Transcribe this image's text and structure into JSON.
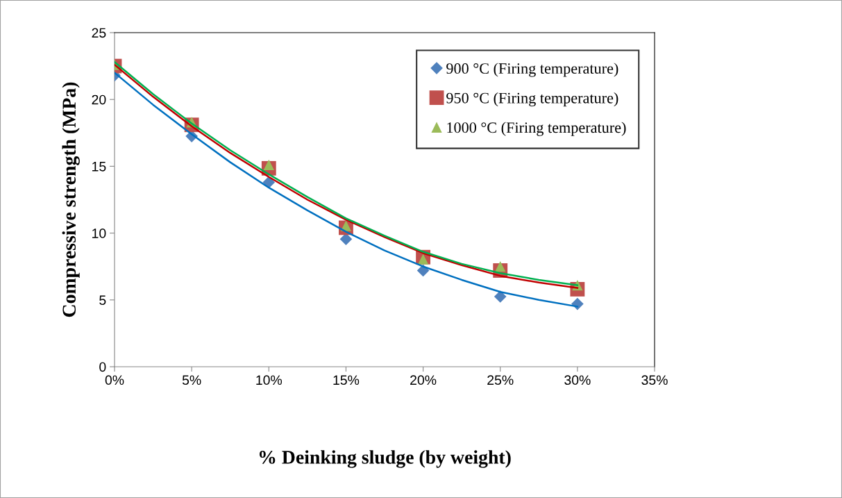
{
  "chart_data": {
    "type": "scatter",
    "xlabel": "% Deinking sludge (by weight)",
    "ylabel": "Compressive strength (MPa)",
    "x": [
      0,
      5,
      10,
      15,
      20,
      25,
      30
    ],
    "xlim": [
      0,
      35
    ],
    "xticks": [
      {
        "value": 0,
        "label": "0%"
      },
      {
        "value": 5,
        "label": "5%"
      },
      {
        "value": 10,
        "label": "10%"
      },
      {
        "value": 15,
        "label": "15%"
      },
      {
        "value": 20,
        "label": "20%"
      },
      {
        "value": 25,
        "label": "25%"
      },
      {
        "value": 30,
        "label": "30%"
      },
      {
        "value": 35,
        "label": "35%"
      }
    ],
    "ylim": [
      0,
      25
    ],
    "yticks": [
      0,
      5,
      10,
      15,
      20,
      25
    ],
    "grid": false,
    "legend": "top right",
    "series": [
      {
        "name": "900 °C (Firing temperature)",
        "color": "#4f81bd",
        "marker": "diamond",
        "values": [
          21.8,
          17.25,
          13.8,
          9.55,
          7.2,
          5.25,
          4.7
        ]
      },
      {
        "name": "950 °C (Firing temperature)",
        "color": "#c0504d",
        "marker": "square",
        "values": [
          22.5,
          18.1,
          14.85,
          10.4,
          8.2,
          7.2,
          5.8
        ]
      },
      {
        "name": "1000 °C (Firing temperature)",
        "color": "#9bbb59",
        "marker": "triangle",
        "values": [
          22.6,
          18.3,
          15.1,
          10.55,
          8.05,
          7.5,
          6.1
        ]
      },
      {
        "type": "line",
        "color": "#0070c0",
        "marker": "none",
        "x": [
          0,
          2.5,
          5,
          7.5,
          10,
          12.5,
          15,
          17.5,
          20,
          22.5,
          25,
          27.5,
          30
        ],
        "values": [
          22.0,
          19.6,
          17.4,
          15.3,
          13.4,
          11.7,
          10.1,
          8.7,
          7.5,
          6.5,
          5.6,
          5.0,
          4.5
        ]
      },
      {
        "type": "line",
        "color": "#c00000",
        "marker": "none",
        "x": [
          0,
          2.5,
          5,
          7.5,
          10,
          12.5,
          15,
          17.5,
          20,
          22.5,
          25,
          27.5,
          30
        ],
        "values": [
          22.6,
          20.2,
          18.0,
          16.0,
          14.2,
          12.5,
          11.0,
          9.7,
          8.5,
          7.6,
          6.8,
          6.3,
          5.9
        ]
      },
      {
        "type": "line",
        "color": "#00b050",
        "marker": "none",
        "x": [
          0,
          2.5,
          5,
          7.5,
          10,
          12.5,
          15,
          17.5,
          20,
          22.5,
          25,
          27.5,
          30
        ],
        "values": [
          22.8,
          20.4,
          18.2,
          16.2,
          14.4,
          12.7,
          11.1,
          9.8,
          8.6,
          7.7,
          7.0,
          6.5,
          6.1
        ]
      }
    ]
  }
}
